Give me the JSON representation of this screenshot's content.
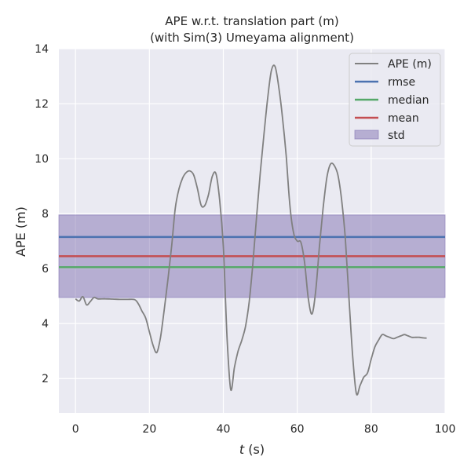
{
  "chart_data": {
    "type": "line",
    "title": "APE w.r.t. translation part (m)",
    "subtitle": "(with Sim(3) Umeyama alignment)",
    "xlabel_var": "t",
    "xlabel_unit": " (s)",
    "ylabel": "APE (m)",
    "xlim": [
      -4.5,
      100
    ],
    "ylim": [
      0.75,
      14
    ],
    "xticks": [
      0,
      20,
      40,
      60,
      80,
      100
    ],
    "yticks": [
      2,
      4,
      6,
      8,
      10,
      12,
      14
    ],
    "grid": true,
    "legend_position": "top-right",
    "colors": {
      "background": "#EAEAF2",
      "grid": "#FFFFFF",
      "ape": "#808080",
      "rmse": "#4C72B0",
      "median": "#55A868",
      "mean": "#C44E52",
      "std_fill": "#8172B2"
    },
    "stats": {
      "rmse": 7.15,
      "median": 6.05,
      "mean": 6.45,
      "std_low": 4.95,
      "std_high": 7.95
    },
    "legend": [
      "APE (m)",
      "rmse",
      "median",
      "mean",
      "std"
    ],
    "series": [
      {
        "name": "APE (m)",
        "x": [
          0,
          1,
          2,
          3,
          4,
          5,
          6,
          8,
          10,
          12,
          14,
          16,
          17,
          18,
          19,
          20,
          21,
          22,
          23,
          24,
          25,
          26,
          27,
          28,
          29,
          30,
          31,
          32,
          33,
          34,
          35,
          36,
          37,
          38,
          39,
          40,
          41,
          42,
          43,
          44,
          45,
          46,
          47,
          48,
          49,
          50,
          51,
          52,
          53,
          54,
          55,
          56,
          57,
          58,
          59,
          60,
          61,
          62,
          63,
          64,
          65,
          66,
          67,
          68,
          69,
          70,
          71,
          72,
          73,
          74,
          75,
          76,
          77,
          78,
          79,
          80,
          81,
          82,
          83,
          84,
          85,
          86,
          87,
          88,
          89,
          90,
          91,
          92,
          93,
          94,
          95
        ],
        "y": [
          4.9,
          4.82,
          4.98,
          4.68,
          4.8,
          4.95,
          4.9,
          4.9,
          4.89,
          4.88,
          4.88,
          4.87,
          4.72,
          4.45,
          4.2,
          3.7,
          3.2,
          2.95,
          3.5,
          4.5,
          5.6,
          6.8,
          8.2,
          8.9,
          9.3,
          9.5,
          9.55,
          9.4,
          8.9,
          8.3,
          8.3,
          8.7,
          9.35,
          9.45,
          8.5,
          6.8,
          3.5,
          1.6,
          2.4,
          3.0,
          3.4,
          3.9,
          4.8,
          6.2,
          7.9,
          9.5,
          10.9,
          12.2,
          13.2,
          13.35,
          12.6,
          11.5,
          10.1,
          8.3,
          7.3,
          7.0,
          6.95,
          6.2,
          4.9,
          4.35,
          5.2,
          6.8,
          8.2,
          9.3,
          9.8,
          9.75,
          9.4,
          8.5,
          7.1,
          4.9,
          2.8,
          1.45,
          1.75,
          2.05,
          2.2,
          2.7,
          3.15,
          3.4,
          3.6,
          3.55,
          3.5,
          3.45,
          3.5,
          3.55,
          3.6,
          3.55,
          3.5,
          3.5,
          3.5,
          3.48,
          3.47
        ]
      }
    ]
  }
}
